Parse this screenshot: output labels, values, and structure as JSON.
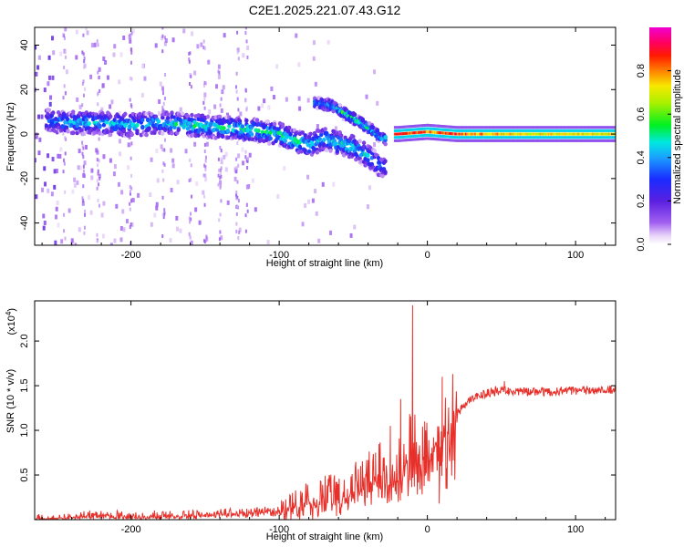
{
  "title": "C2E1.2025.221.07.43.G12",
  "colors": {
    "snr_line": "#e8302a",
    "axes": "#000000",
    "colormap": "rainbow (purple-blue-cyan-green-yellow-red-magenta)"
  },
  "chart_data": [
    {
      "type": "heatmap",
      "title": "C2E1.2025.221.07.43.G12",
      "xlabel": "Height of straight line (km)",
      "ylabel": "Frequency (Hz)",
      "xlim": [
        -265,
        127
      ],
      "ylim": [
        -50,
        48
      ],
      "x_ticks": [
        -200,
        -100,
        0,
        100
      ],
      "y_ticks": [
        -40,
        -20,
        0,
        20,
        40
      ],
      "x_tick_labels": [
        "-200",
        "-100",
        "0",
        "100"
      ],
      "y_tick_labels": [
        "-40",
        "-20",
        "0",
        "20",
        "40"
      ],
      "colorbar": {
        "label": "Normalized spectral amplitude",
        "range": [
          0,
          1
        ],
        "ticks": [
          0.0,
          0.2,
          0.4,
          0.6,
          0.8
        ],
        "tick_labels": [
          "0.0",
          "0.2",
          "0.4",
          "0.6",
          "0.8"
        ]
      },
      "main_ridge": [
        {
          "x": -255,
          "y": 6,
          "amp": 0.35
        },
        {
          "x": -240,
          "y": 5,
          "amp": 0.45
        },
        {
          "x": -220,
          "y": 5,
          "amp": 0.45
        },
        {
          "x": -200,
          "y": 4,
          "amp": 0.45
        },
        {
          "x": -180,
          "y": 5,
          "amp": 0.45
        },
        {
          "x": -160,
          "y": 4,
          "amp": 0.5
        },
        {
          "x": -140,
          "y": 3,
          "amp": 0.5
        },
        {
          "x": -120,
          "y": 2,
          "amp": 0.5
        },
        {
          "x": -100,
          "y": 0,
          "amp": 0.5
        },
        {
          "x": -90,
          "y": -3,
          "amp": 0.55
        },
        {
          "x": -80,
          "y": -5,
          "amp": 0.5
        },
        {
          "x": -70,
          "y": -2,
          "amp": 0.45
        },
        {
          "x": -60,
          "y": -4,
          "amp": 0.5
        },
        {
          "x": -50,
          "y": -6,
          "amp": 0.5
        },
        {
          "x": -40,
          "y": -10,
          "amp": 0.45
        },
        {
          "x": -30,
          "y": -15,
          "amp": 0.35
        }
      ],
      "upper_ridge": [
        {
          "x": -75,
          "y": 14,
          "amp": 0.4
        },
        {
          "x": -65,
          "y": 13,
          "amp": 0.45
        },
        {
          "x": -55,
          "y": 9,
          "amp": 0.55
        },
        {
          "x": -45,
          "y": 5,
          "amp": 0.55
        },
        {
          "x": -38,
          "y": 2,
          "amp": 0.5
        },
        {
          "x": -30,
          "y": -2,
          "amp": 0.45
        }
      ],
      "stable_band": [
        {
          "x": -20,
          "y": 0,
          "amp": 0.9
        },
        {
          "x": 0,
          "y": 1,
          "amp": 0.85
        },
        {
          "x": 20,
          "y": 0,
          "amp": 0.9
        },
        {
          "x": 40,
          "y": 0,
          "amp": 0.8
        },
        {
          "x": 60,
          "y": 0,
          "amp": 0.75
        },
        {
          "x": 80,
          "y": 0,
          "amp": 0.75
        },
        {
          "x": 100,
          "y": 0,
          "amp": 0.75
        },
        {
          "x": 120,
          "y": 0,
          "amp": 0.75
        }
      ]
    },
    {
      "type": "line",
      "title": "",
      "xlabel": "Height of straight line (km)",
      "ylabel": "SNR (10 * v/v)",
      "y_multiplier_label": "(x10",
      "y_multiplier_exp": "4",
      "y_multiplier_close": ")",
      "xlim": [
        -265,
        127
      ],
      "ylim": [
        0,
        2.45
      ],
      "x_ticks": [
        -200,
        -100,
        0,
        100
      ],
      "y_ticks": [
        0.5,
        1.0,
        1.5,
        2.0
      ],
      "x_tick_labels": [
        "-200",
        "-100",
        "0",
        "100"
      ],
      "y_tick_labels": [
        "0.5",
        "1.0",
        "1.5",
        "2.0"
      ],
      "series": [
        {
          "x": [
            -265,
            -250,
            -240,
            -230,
            -220,
            -210,
            -200,
            -190,
            -180,
            -170,
            -160,
            -150,
            -140,
            -130,
            -120,
            -110,
            -100,
            -90,
            -80,
            -70,
            -60,
            -50,
            -40,
            -30,
            -20,
            -15,
            -10,
            -5,
            0,
            5,
            10,
            15,
            20,
            30,
            40,
            50,
            60,
            70,
            80,
            90,
            100,
            110,
            120,
            127
          ],
          "y": [
            0.01,
            0.02,
            0.04,
            0.05,
            0.06,
            0.05,
            0.04,
            0.04,
            0.05,
            0.05,
            0.06,
            0.07,
            0.07,
            0.07,
            0.08,
            0.1,
            0.12,
            0.15,
            0.2,
            0.25,
            0.3,
            0.38,
            0.45,
            0.55,
            0.65,
            0.75,
            0.82,
            0.8,
            0.85,
            0.9,
            1.0,
            1.1,
            1.2,
            1.35,
            1.42,
            1.45,
            1.44,
            1.43,
            1.43,
            1.44,
            1.44,
            1.45,
            1.46,
            1.46
          ],
          "noise_spikes": [
            {
              "x": -10,
              "y": 2.4
            },
            {
              "x": -18,
              "y": 1.35
            },
            {
              "x": 10,
              "y": 1.6
            },
            {
              "x": 8,
              "y": 0.18
            },
            {
              "x": -25,
              "y": 1.05
            },
            {
              "x": -35,
              "y": 0.75
            },
            {
              "x": -45,
              "y": 0.6
            },
            {
              "x": 52,
              "y": 1.55
            }
          ]
        }
      ]
    }
  ]
}
